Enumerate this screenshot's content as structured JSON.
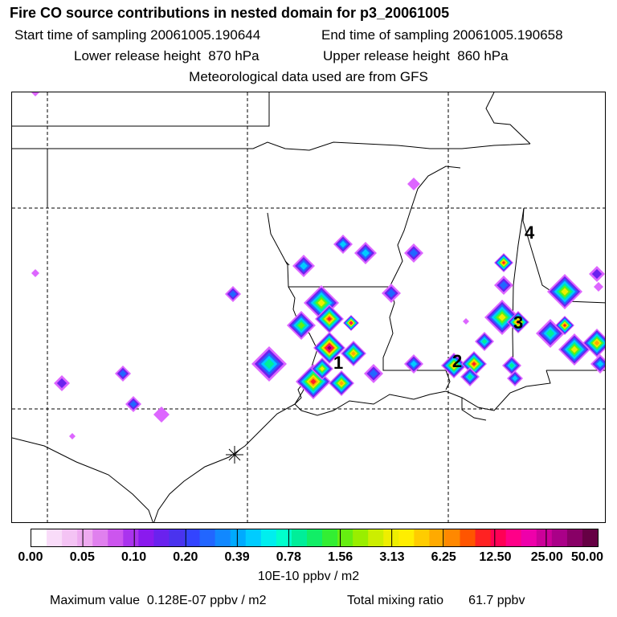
{
  "title": "Fire CO source contributions in nested domain for p3_20061005",
  "sampling": {
    "start": "Start time of sampling 20061005.190644",
    "end": "End time of sampling 20061005.190658"
  },
  "release": {
    "lower": "Lower release height  870 hPa",
    "upper": "Upper release height  860 hPa"
  },
  "met_source": "Meteorological data used are from GFS",
  "map_labels": [
    "1",
    "2",
    "3",
    "4"
  ],
  "colorbar": {
    "ticks": [
      "0.00",
      "0.05",
      "0.10",
      "0.20",
      "0.39",
      "0.78",
      "1.56",
      "3.13",
      "6.25",
      "12.50",
      "25.00",
      "50.00"
    ],
    "colors": [
      "#ffffff",
      "#f9dcf9",
      "#f4c3f4",
      "#eeaaf0",
      "#e080ee",
      "#cc55ee",
      "#aa33ee",
      "#8a1aee",
      "#6a22ee",
      "#4a33ee",
      "#3344ff",
      "#2266ff",
      "#1188ff",
      "#00aaff",
      "#00ccff",
      "#00eeee",
      "#00ffcc",
      "#00ee99",
      "#11ee66",
      "#33ee33",
      "#66ee11",
      "#99ee00",
      "#ccee00",
      "#eeee00",
      "#ffee00",
      "#ffcc00",
      "#ffaa00",
      "#ff8800",
      "#ff5500",
      "#ff2222",
      "#ff0055",
      "#ff0088",
      "#ee00aa",
      "#cc0099",
      "#aa0088",
      "#880066",
      "#660044"
    ],
    "units": "10E-10 ppbv / m2"
  },
  "stats": {
    "max": "Maximum value  0.128E-07 ppbv / m2",
    "total_label": "Total mixing ratio",
    "total_value": "61.7 ppbv"
  }
}
